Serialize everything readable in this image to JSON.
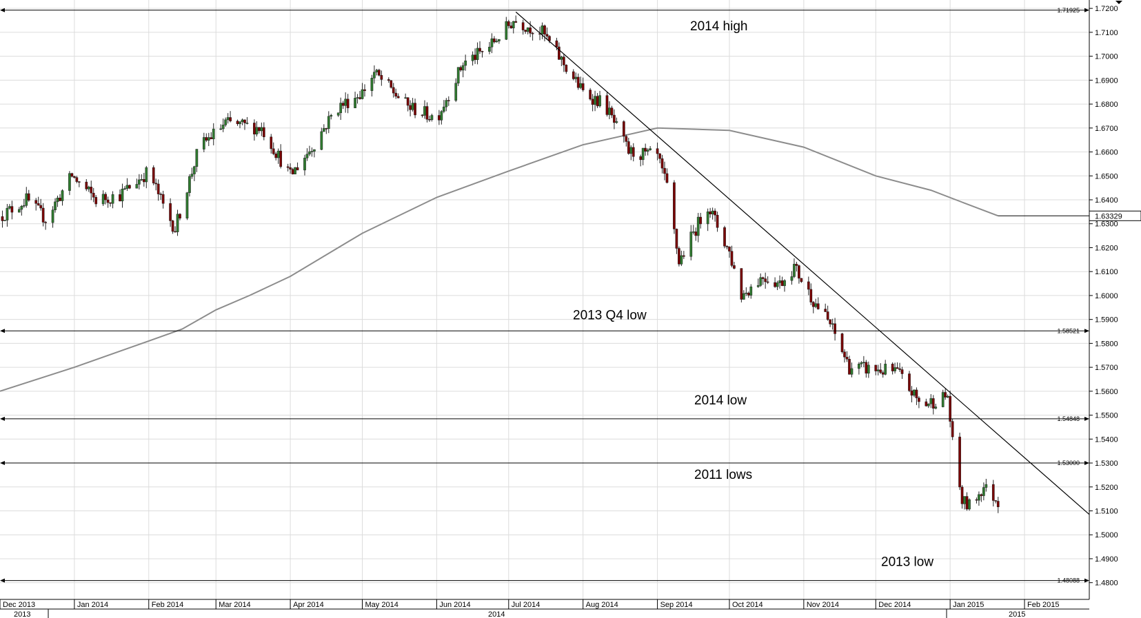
{
  "chart_data": {
    "type": "candlestick",
    "title": "",
    "xlabel": "",
    "ylabel": "",
    "ylim": [
      1.473,
      1.7235
    ],
    "xlim": [
      "2013-12-01",
      "2015-02-28"
    ],
    "y_ticks": [
      "1.7200",
      "1.7100",
      "1.7000",
      "1.6900",
      "1.6800",
      "1.6700",
      "1.6600",
      "1.6500",
      "1.6400",
      "1.6300",
      "1.6200",
      "1.6100",
      "1.6000",
      "1.5900",
      "1.5800",
      "1.5700",
      "1.5600",
      "1.5500",
      "1.5400",
      "1.5300",
      "1.5200",
      "1.5100",
      "1.5000",
      "1.4900",
      "1.4800"
    ],
    "x_month_labels": [
      {
        "date": "2013-12-01",
        "label": "Dec 2013"
      },
      {
        "date": "2014-01-01",
        "label": "Jan 2014"
      },
      {
        "date": "2014-02-01",
        "label": "Feb 2014"
      },
      {
        "date": "2014-03-01",
        "label": "Mar 2014"
      },
      {
        "date": "2014-04-01",
        "label": "Apr 2014"
      },
      {
        "date": "2014-05-01",
        "label": "May 2014"
      },
      {
        "date": "2014-06-01",
        "label": "Jun 2014"
      },
      {
        "date": "2014-07-01",
        "label": "Jul 2014"
      },
      {
        "date": "2014-08-01",
        "label": "Aug 2014"
      },
      {
        "date": "2014-09-01",
        "label": "Sep 2014"
      },
      {
        "date": "2014-10-01",
        "label": "Oct 2014"
      },
      {
        "date": "2014-11-01",
        "label": "Nov 2014"
      },
      {
        "date": "2014-12-01",
        "label": "Dec 2014"
      },
      {
        "date": "2015-01-01",
        "label": "Jan 2015"
      },
      {
        "date": "2015-02-01",
        "label": "Feb 2015"
      }
    ],
    "x_year_labels": [
      {
        "date": "2013-12-01",
        "label": "2013"
      },
      {
        "date": "2014-07-01",
        "label": "2014"
      },
      {
        "date": "2015-02-01",
        "label": "2015"
      }
    ],
    "levels": [
      {
        "value": 1.71925,
        "label": "1.71925",
        "annotation": "2014 high"
      },
      {
        "value": 1.58521,
        "label": "1.58521",
        "annotation": "2013 Q4 low"
      },
      {
        "value": 1.54848,
        "label": "1.54848",
        "annotation": "2014 low"
      },
      {
        "value": 1.53,
        "label": "1.53000",
        "annotation": "2011 lows"
      },
      {
        "value": 1.48088,
        "label": "1.48088",
        "annotation": "2013 low"
      }
    ],
    "last_value_label": "1.63329",
    "trendline": {
      "from": {
        "date": "2014-07-04",
        "value": 1.7185
      },
      "to": {
        "date": "2015-02-28",
        "value": 1.5085
      }
    },
    "moving_average": [
      {
        "date": "2013-12-01",
        "value": 1.56
      },
      {
        "date": "2014-01-01",
        "value": 1.57
      },
      {
        "date": "2014-02-01",
        "value": 1.581
      },
      {
        "date": "2014-02-15",
        "value": 1.586
      },
      {
        "date": "2014-03-01",
        "value": 1.594
      },
      {
        "date": "2014-03-15",
        "value": 1.6
      },
      {
        "date": "2014-04-01",
        "value": 1.608
      },
      {
        "date": "2014-05-01",
        "value": 1.626
      },
      {
        "date": "2014-06-01",
        "value": 1.641
      },
      {
        "date": "2014-07-01",
        "value": 1.652
      },
      {
        "date": "2014-08-01",
        "value": 1.663
      },
      {
        "date": "2014-09-01",
        "value": 1.67
      },
      {
        "date": "2014-10-01",
        "value": 1.669
      },
      {
        "date": "2014-11-01",
        "value": 1.662
      },
      {
        "date": "2014-12-01",
        "value": 1.65
      },
      {
        "date": "2014-12-24",
        "value": 1.644
      },
      {
        "date": "2015-01-06",
        "value": 1.639
      },
      {
        "date": "2015-01-21",
        "value": 1.6333
      }
    ],
    "price_anchors": [
      {
        "date": "2013-12-01",
        "value": 1.633
      },
      {
        "date": "2013-12-12",
        "value": 1.64
      },
      {
        "date": "2013-12-20",
        "value": 1.632
      },
      {
        "date": "2013-12-31",
        "value": 1.65
      },
      {
        "date": "2014-01-10",
        "value": 1.64
      },
      {
        "date": "2014-01-20",
        "value": 1.642
      },
      {
        "date": "2014-02-01",
        "value": 1.652
      },
      {
        "date": "2014-02-08",
        "value": 1.635
      },
      {
        "date": "2014-02-12",
        "value": 1.628
      },
      {
        "date": "2014-02-22",
        "value": 1.662
      },
      {
        "date": "2014-03-05",
        "value": 1.672
      },
      {
        "date": "2014-03-20",
        "value": 1.67
      },
      {
        "date": "2014-04-01",
        "value": 1.65
      },
      {
        "date": "2014-04-10",
        "value": 1.662
      },
      {
        "date": "2014-04-20",
        "value": 1.678
      },
      {
        "date": "2014-05-01",
        "value": 1.685
      },
      {
        "date": "2014-05-06",
        "value": 1.693
      },
      {
        "date": "2014-05-20",
        "value": 1.679
      },
      {
        "date": "2014-06-01",
        "value": 1.674
      },
      {
        "date": "2014-06-12",
        "value": 1.697
      },
      {
        "date": "2014-06-22",
        "value": 1.703
      },
      {
        "date": "2014-07-03",
        "value": 1.715
      },
      {
        "date": "2014-07-15",
        "value": 1.71
      },
      {
        "date": "2014-08-01",
        "value": 1.685
      },
      {
        "date": "2014-08-10",
        "value": 1.68
      },
      {
        "date": "2014-08-20",
        "value": 1.66
      },
      {
        "date": "2014-09-01",
        "value": 1.658
      },
      {
        "date": "2014-09-05",
        "value": 1.645
      },
      {
        "date": "2014-09-10",
        "value": 1.614
      },
      {
        "date": "2014-09-15",
        "value": 1.624
      },
      {
        "date": "2014-09-22",
        "value": 1.638
      },
      {
        "date": "2014-10-01",
        "value": 1.618
      },
      {
        "date": "2014-10-06",
        "value": 1.6
      },
      {
        "date": "2014-10-15",
        "value": 1.608
      },
      {
        "date": "2014-10-22",
        "value": 1.605
      },
      {
        "date": "2014-10-28",
        "value": 1.612
      },
      {
        "date": "2014-11-05",
        "value": 1.598
      },
      {
        "date": "2014-11-12",
        "value": 1.588
      },
      {
        "date": "2014-11-20",
        "value": 1.57
      },
      {
        "date": "2014-12-01",
        "value": 1.569
      },
      {
        "date": "2014-12-10",
        "value": 1.568
      },
      {
        "date": "2014-12-20",
        "value": 1.554
      },
      {
        "date": "2014-12-31",
        "value": 1.558
      },
      {
        "date": "2015-01-02",
        "value": 1.538
      },
      {
        "date": "2015-01-06",
        "value": 1.514
      },
      {
        "date": "2015-01-09",
        "value": 1.512
      },
      {
        "date": "2015-01-15",
        "value": 1.52
      },
      {
        "date": "2015-01-21",
        "value": 1.514
      }
    ],
    "grid": true,
    "legend": "none",
    "colors": {
      "up": "#2f7a2f",
      "down": "#7a0000",
      "ma": "#8c8c8c",
      "trend": "#000000",
      "grid": "#dcdcdc"
    }
  }
}
